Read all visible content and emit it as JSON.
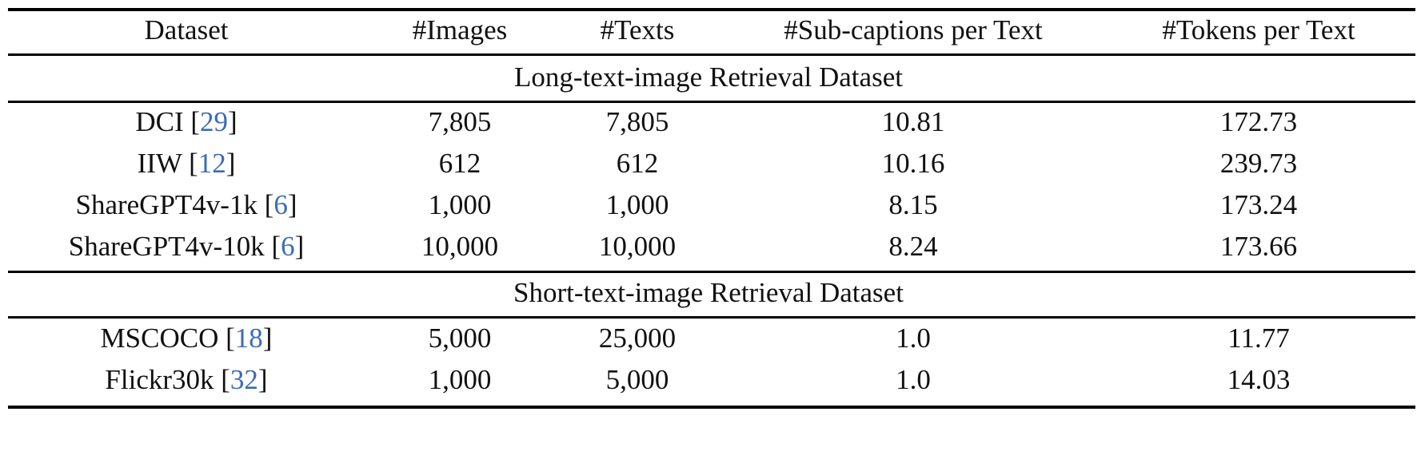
{
  "table": {
    "headers": [
      "Dataset",
      "#Images",
      "#Texts",
      "#Sub-captions per Text",
      "#Tokens per Text"
    ],
    "sections": [
      {
        "title": "Long-text-image Retrieval Dataset",
        "rows": [
          {
            "name": "DCI",
            "cite": "29",
            "images": "7,805",
            "texts": "7,805",
            "subcaptions": "10.81",
            "tokens": "172.73"
          },
          {
            "name": "IIW",
            "cite": "12",
            "images": "612",
            "texts": "612",
            "subcaptions": "10.16",
            "tokens": "239.73"
          },
          {
            "name": "ShareGPT4v-1k",
            "cite": "6",
            "images": "1,000",
            "texts": "1,000",
            "subcaptions": "8.15",
            "tokens": "173.24"
          },
          {
            "name": "ShareGPT4v-10k",
            "cite": "6",
            "images": "10,000",
            "texts": "10,000",
            "subcaptions": "8.24",
            "tokens": "173.66"
          }
        ]
      },
      {
        "title": "Short-text-image Retrieval Dataset",
        "rows": [
          {
            "name": "MSCOCO",
            "cite": "18",
            "images": "5,000",
            "texts": "25,000",
            "subcaptions": "1.0",
            "tokens": "11.77"
          },
          {
            "name": "Flickr30k",
            "cite": "32",
            "images": "1,000",
            "texts": "5,000",
            "subcaptions": "1.0",
            "tokens": "14.03"
          }
        ]
      }
    ]
  },
  "colors": {
    "text": "#111111",
    "citation": "#3b6bb5",
    "rule": "#000000",
    "background": "#ffffff"
  }
}
